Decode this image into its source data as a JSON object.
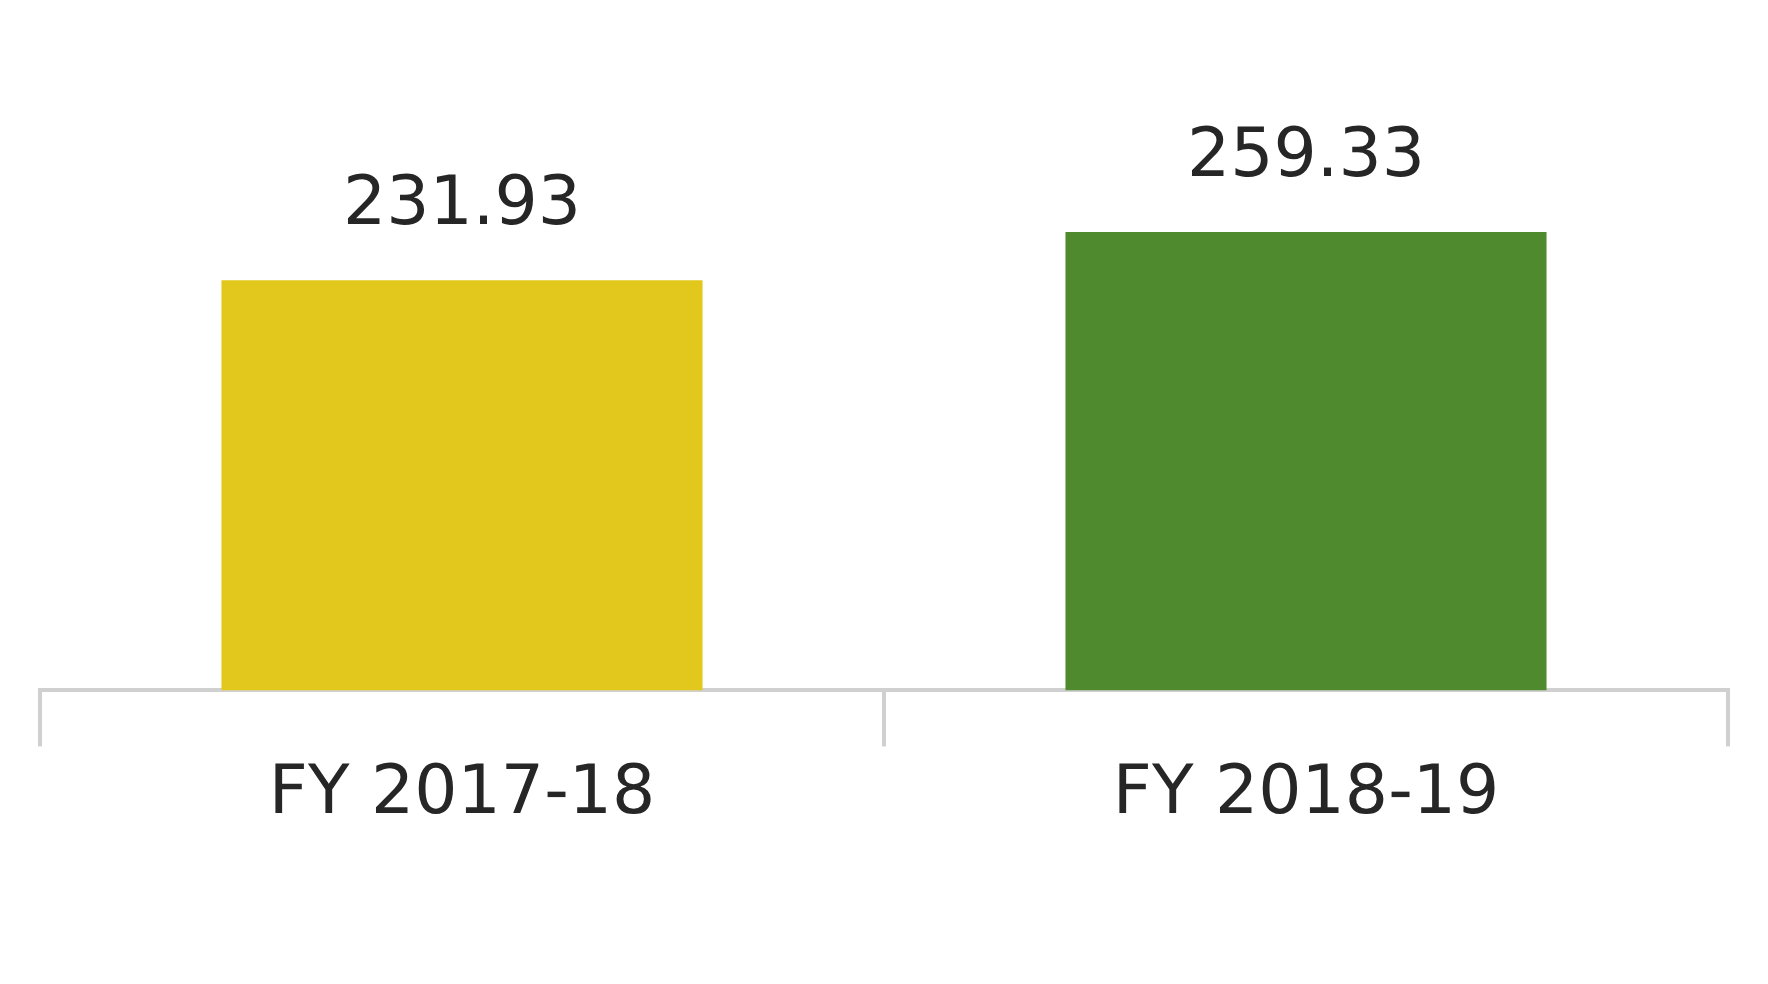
{
  "chart_data": {
    "type": "bar",
    "categories": [
      "FY 2017-18",
      "FY 2018-19"
    ],
    "values": [
      231.93,
      259.33
    ],
    "colors": [
      "#e2c81c",
      "#4f8a2f"
    ],
    "data_labels": true,
    "grid": false,
    "legend": false,
    "tick_labels": "x"
  }
}
